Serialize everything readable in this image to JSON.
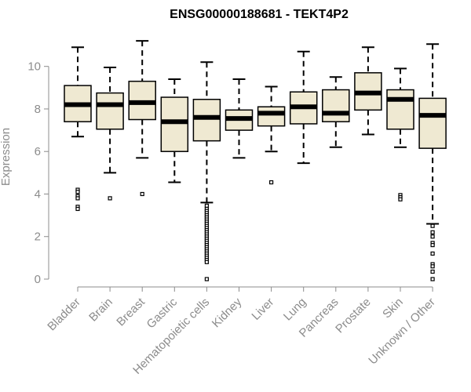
{
  "chart_data": {
    "type": "boxplot",
    "title": "ENSG00000188681 - TEKT4P2",
    "xlabel": "",
    "ylabel": "Expression",
    "ylim": [
      0,
      11.5
    ],
    "yticks": [
      0,
      2,
      4,
      6,
      8,
      10
    ],
    "grid": false,
    "legend": "none",
    "box_fill": "#efe9d2",
    "box_stroke": "#000000",
    "axis_color": "#8c8c8c",
    "categories": [
      "Bladder",
      "Brain",
      "Breast",
      "Gastric",
      "Hematopoietic cells",
      "Kidney",
      "Liver",
      "Lung",
      "Pancreas",
      "Prostate",
      "Skin",
      "Unknown / Other"
    ],
    "series": [
      {
        "name": "Bladder",
        "whisker_low": 6.7,
        "q1": 7.4,
        "median": 8.2,
        "q3": 9.1,
        "whisker_high": 10.9,
        "outliers": [
          4.2,
          4.1,
          3.9,
          3.8,
          3.4,
          3.3
        ]
      },
      {
        "name": "Brain",
        "whisker_low": 5.0,
        "q1": 7.05,
        "median": 8.2,
        "q3": 8.75,
        "whisker_high": 9.95,
        "outliers": [
          3.8
        ]
      },
      {
        "name": "Breast",
        "whisker_low": 5.7,
        "q1": 7.5,
        "median": 8.3,
        "q3": 9.3,
        "whisker_high": 11.2,
        "outliers": [
          4.0
        ]
      },
      {
        "name": "Gastric",
        "whisker_low": 4.55,
        "q1": 6.0,
        "median": 7.4,
        "q3": 8.55,
        "whisker_high": 9.4,
        "outliers": []
      },
      {
        "name": "Hematopoietic cells",
        "whisker_low": 3.6,
        "q1": 6.5,
        "median": 7.6,
        "q3": 8.45,
        "whisker_high": 10.2,
        "outliers": [
          3.45,
          3.3,
          3.2,
          3.1,
          3.0,
          2.9,
          2.8,
          2.7,
          2.6,
          2.5,
          2.4,
          2.3,
          2.2,
          2.1,
          2.0,
          1.9,
          1.8,
          1.7,
          1.6,
          1.5,
          1.4,
          1.3,
          1.2,
          1.1,
          1.0,
          0.9,
          0.8,
          0.0
        ]
      },
      {
        "name": "Kidney",
        "whisker_low": 5.7,
        "q1": 7.0,
        "median": 7.55,
        "q3": 7.95,
        "whisker_high": 9.4,
        "outliers": []
      },
      {
        "name": "Liver",
        "whisker_low": 6.0,
        "q1": 7.2,
        "median": 7.8,
        "q3": 8.1,
        "whisker_high": 9.05,
        "outliers": [
          4.55
        ]
      },
      {
        "name": "Lung",
        "whisker_low": 5.45,
        "q1": 7.3,
        "median": 8.1,
        "q3": 8.8,
        "whisker_high": 10.7,
        "outliers": []
      },
      {
        "name": "Pancreas",
        "whisker_low": 6.2,
        "q1": 7.4,
        "median": 7.8,
        "q3": 8.9,
        "whisker_high": 9.5,
        "outliers": []
      },
      {
        "name": "Prostate",
        "whisker_low": 6.8,
        "q1": 7.95,
        "median": 8.75,
        "q3": 9.7,
        "whisker_high": 10.9,
        "outliers": []
      },
      {
        "name": "Skin",
        "whisker_low": 6.2,
        "q1": 7.05,
        "median": 8.45,
        "q3": 8.9,
        "whisker_high": 9.9,
        "outliers": [
          3.95,
          3.85,
          3.75
        ]
      },
      {
        "name": "Unknown / Other",
        "whisker_low": 2.6,
        "q1": 6.15,
        "median": 7.7,
        "q3": 8.5,
        "whisker_high": 11.05,
        "outliers": [
          2.5,
          2.2,
          2.0,
          1.7,
          1.6,
          1.2,
          0.7,
          0.6,
          0.35,
          0.0
        ]
      }
    ]
  }
}
